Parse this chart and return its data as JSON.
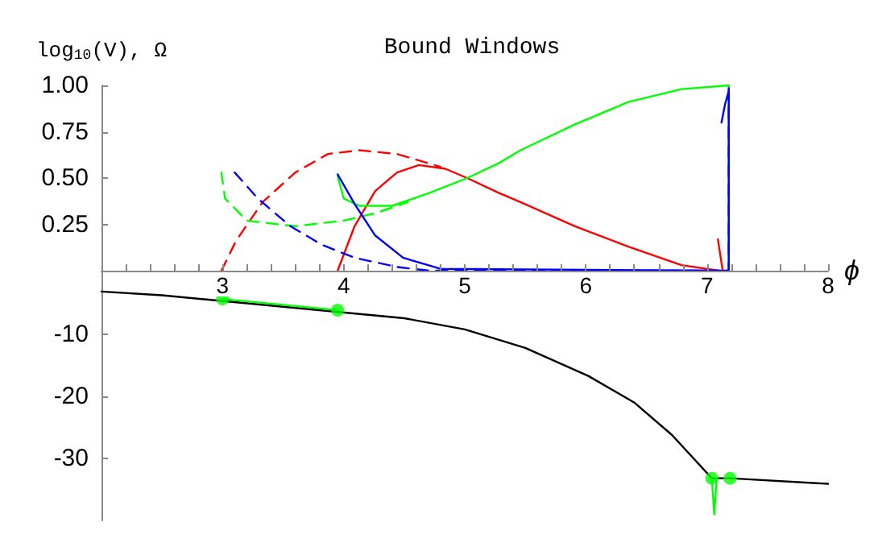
{
  "chart_data": [
    {
      "type": "line",
      "title": "Bound Windows",
      "ylabel": "log$_{10}$(V), Ω",
      "xlabel": "ϕ",
      "marker": "none",
      "xlim": [
        2,
        8
      ],
      "xticks": [
        {
          "value": 2.2,
          "label": null
        },
        {
          "value": 2.4,
          "label": null
        },
        {
          "value": 2.6,
          "label": null
        },
        {
          "value": 2.8,
          "label": null
        },
        3,
        {
          "value": 3.2,
          "label": null
        },
        {
          "value": 3.4,
          "label": null
        },
        {
          "value": 3.6,
          "label": null
        },
        {
          "value": 3.8,
          "label": null
        },
        4,
        {
          "value": 4.2,
          "label": null
        },
        {
          "value": 4.4,
          "label": null
        },
        {
          "value": 4.6,
          "label": null
        },
        {
          "value": 4.8,
          "label": null
        },
        5,
        {
          "value": 5.2,
          "label": null
        },
        {
          "value": 5.4,
          "label": null
        },
        {
          "value": 5.6,
          "label": null
        },
        {
          "value": 5.8,
          "label": null
        },
        6,
        {
          "value": 6.2,
          "label": null
        },
        {
          "value": 6.4,
          "label": null
        },
        {
          "value": 6.6,
          "label": null
        },
        {
          "value": 6.8,
          "label": null
        },
        7,
        {
          "value": 7.2,
          "label": null
        },
        {
          "value": 7.4,
          "label": null
        },
        {
          "value": 7.6,
          "label": null
        },
        {
          "value": 7.8,
          "label": null
        },
        8
      ],
      "ylim": [
        0,
        1
      ],
      "yticks": [
        0.25,
        {
          "value": 0.5,
          "label": "0.50"
        },
        0.75,
        {
          "value": 1,
          "label": "1.00"
        }
      ],
      "series": [
        {
          "color": "#ff0000",
          "line_style": "dashed",
          "x": [
            2.99,
            3.11,
            3.33,
            3.6,
            3.87,
            4.13,
            4.44,
            4.8
          ],
          "values": [
            0,
            0.16,
            0.37,
            0.53,
            0.63,
            0.65,
            0.63,
            0.56
          ]
        },
        {
          "color": "#ff0000",
          "line_style": "solid",
          "x": [
            3.95,
            4.09,
            4.26,
            4.44,
            4.62,
            4.84,
            5.02,
            5.28,
            5.46,
            5.91,
            6.35,
            6.79,
            7.1
          ],
          "values": [
            0,
            0.24,
            0.43,
            0.53,
            0.57,
            0.55,
            0.5,
            0.42,
            0.37,
            0.24,
            0.13,
            0.03,
            0
          ]
        },
        {
          "color": "#ff0000",
          "line_style": "solid",
          "x": [
            7.09,
            7.13
          ],
          "values": [
            0.17,
            0
          ]
        },
        {
          "color": "#00ff00",
          "line_style": "dashed",
          "x": [
            2.99,
            3.02,
            3.2,
            3.6,
            4.0,
            4.26,
            4.53
          ],
          "values": [
            0.53,
            0.39,
            0.27,
            0.24,
            0.27,
            0.31,
            0.37
          ]
        },
        {
          "color": "#00ff00",
          "line_style": "solid",
          "x": [
            3.95,
            4.0,
            4.13,
            4.4,
            4.71,
            5.02,
            5.28,
            5.46,
            5.91,
            6.35,
            6.79,
            7.18,
            7.18
          ],
          "values": [
            0.51,
            0.39,
            0.35,
            0.35,
            0.42,
            0.5,
            0.58,
            0.65,
            0.79,
            0.91,
            0.98,
            1.0,
            0
          ]
        },
        {
          "color": "#0000ff",
          "line_style": "dashed",
          "x": [
            3.1,
            3.29,
            3.56,
            3.82,
            4.09,
            4.44,
            4.71,
            7.18,
            7.18
          ],
          "values": [
            0.53,
            0.39,
            0.24,
            0.14,
            0.07,
            0.02,
            0,
            0,
            1.0
          ]
        },
        {
          "color": "#0000ff",
          "line_style": "solid",
          "x": [
            3.95,
            4.09,
            4.26,
            4.49,
            4.8,
            7.18,
            7.18,
            7.15,
            7.12
          ],
          "values": [
            0.52,
            0.36,
            0.19,
            0.07,
            0.01,
            0,
            0.97,
            0.9,
            0.8
          ]
        }
      ]
    },
    {
      "type": "line",
      "xlim": [
        2,
        8
      ],
      "ylim": [
        -40,
        0
      ],
      "yticks": [
        -10,
        -20,
        -30
      ],
      "tick_labels": "y",
      "marker": "none",
      "series": [
        {
          "color": "#000000",
          "line_style": "solid",
          "x": [
            2.0,
            2.5,
            4.5,
            5.0,
            5.5,
            6.02,
            6.4,
            6.71,
            7.04,
            7.19,
            8.0
          ],
          "values": [
            -3.1,
            -3.7,
            -7.4,
            -9.2,
            -12.2,
            -16.7,
            -21.0,
            -26.2,
            -33.2,
            -33.2,
            -34.1
          ]
        },
        {
          "color": "#00ff00",
          "line_style": "solid",
          "x": [
            3.0,
            3.95
          ],
          "values": [
            -4.3,
            -6.1
          ]
        },
        {
          "color": "#00ff00",
          "line_style": "solid",
          "x": [
            7.04,
            7.06,
            7.08
          ],
          "values": [
            -33.2,
            -39,
            -33.2
          ]
        },
        {
          "type": "scatter",
          "marker": "circle",
          "color": "#00ff00",
          "x": [
            3.0,
            3.95,
            7.04,
            7.19
          ],
          "values": [
            -4.3,
            -6.1,
            -33.2,
            -33.2
          ]
        }
      ]
    }
  ]
}
